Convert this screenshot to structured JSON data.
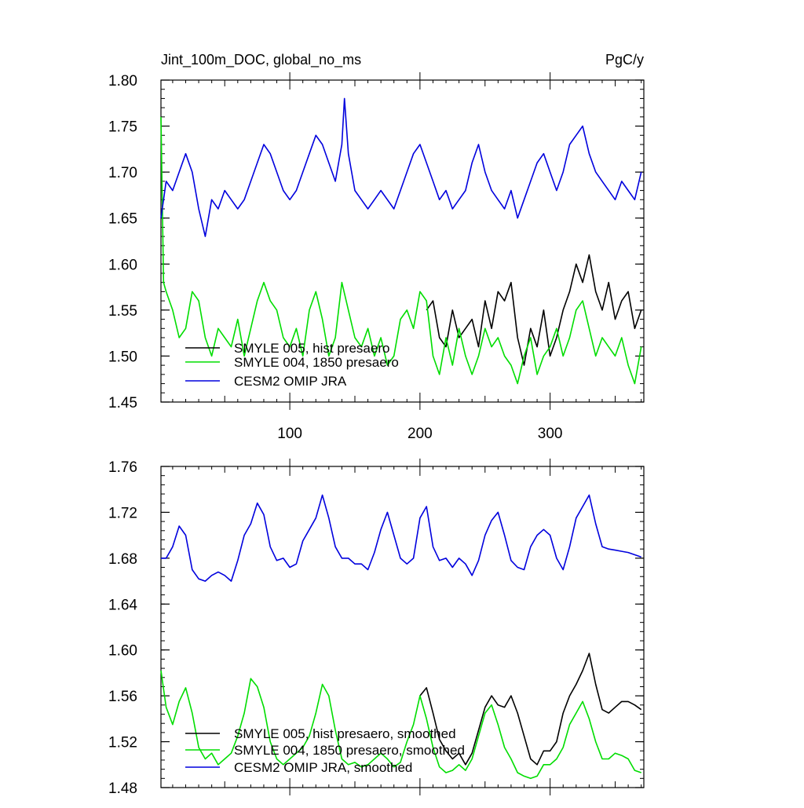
{
  "chart_data": [
    {
      "type": "line",
      "title": "Jint_100m_DOC, global_no_ms",
      "units": "PgC/y",
      "xlim": [
        1,
        372
      ],
      "ylim": [
        1.45,
        1.8
      ],
      "x_ticks": [
        100,
        200,
        300
      ],
      "y_ticks": [
        "1.45",
        "1.50",
        "1.55",
        "1.60",
        "1.65",
        "1.70",
        "1.75",
        "1.80"
      ],
      "grid": false,
      "legend_position": "bottom-left",
      "series": [
        {
          "name": "SMYLE 005, hist presaero",
          "color": "#000000",
          "x": [
            205,
            210,
            215,
            220,
            225,
            230,
            235,
            240,
            245,
            250,
            255,
            260,
            265,
            270,
            275,
            280,
            285,
            290,
            295,
            300,
            305,
            310,
            315,
            320,
            325,
            330,
            335,
            340,
            345,
            350,
            355,
            360,
            365,
            370
          ],
          "y": [
            1.55,
            1.56,
            1.52,
            1.51,
            1.55,
            1.52,
            1.53,
            1.54,
            1.51,
            1.56,
            1.53,
            1.57,
            1.56,
            1.58,
            1.52,
            1.49,
            1.53,
            1.51,
            1.55,
            1.5,
            1.52,
            1.55,
            1.57,
            1.6,
            1.58,
            1.61,
            1.57,
            1.55,
            1.58,
            1.54,
            1.56,
            1.57,
            1.53,
            1.55
          ]
        },
        {
          "name": "SMYLE 004, 1850 presaero",
          "color": "#00dd00",
          "x": [
            1,
            3,
            5,
            10,
            15,
            20,
            25,
            30,
            35,
            40,
            45,
            50,
            55,
            60,
            65,
            70,
            75,
            80,
            85,
            90,
            95,
            100,
            105,
            110,
            115,
            120,
            125,
            130,
            135,
            140,
            145,
            150,
            155,
            160,
            165,
            170,
            175,
            180,
            185,
            190,
            195,
            200,
            205,
            210,
            215,
            220,
            225,
            230,
            235,
            240,
            245,
            250,
            255,
            260,
            265,
            270,
            275,
            280,
            285,
            290,
            295,
            300,
            305,
            310,
            315,
            320,
            325,
            330,
            335,
            340,
            345,
            350,
            355,
            360,
            365,
            370
          ],
          "y": [
            1.76,
            1.58,
            1.57,
            1.55,
            1.52,
            1.53,
            1.57,
            1.56,
            1.52,
            1.5,
            1.53,
            1.52,
            1.51,
            1.54,
            1.5,
            1.53,
            1.56,
            1.58,
            1.56,
            1.55,
            1.52,
            1.51,
            1.53,
            1.5,
            1.55,
            1.57,
            1.54,
            1.5,
            1.52,
            1.58,
            1.55,
            1.52,
            1.51,
            1.53,
            1.5,
            1.52,
            1.49,
            1.5,
            1.54,
            1.55,
            1.53,
            1.57,
            1.56,
            1.5,
            1.48,
            1.52,
            1.49,
            1.53,
            1.5,
            1.48,
            1.5,
            1.53,
            1.51,
            1.52,
            1.5,
            1.49,
            1.47,
            1.5,
            1.52,
            1.48,
            1.5,
            1.51,
            1.53,
            1.5,
            1.52,
            1.55,
            1.56,
            1.53,
            1.5,
            1.52,
            1.51,
            1.5,
            1.52,
            1.49,
            1.47,
            1.51
          ]
        },
        {
          "name": "CESM2 OMIP JRA",
          "color": "#0000dd",
          "x": [
            1,
            5,
            10,
            15,
            20,
            25,
            30,
            35,
            40,
            45,
            50,
            55,
            60,
            65,
            70,
            75,
            80,
            85,
            90,
            95,
            100,
            105,
            110,
            115,
            120,
            125,
            130,
            135,
            140,
            142,
            145,
            150,
            155,
            160,
            165,
            170,
            175,
            180,
            185,
            190,
            195,
            200,
            205,
            210,
            215,
            220,
            225,
            230,
            235,
            240,
            245,
            250,
            255,
            260,
            265,
            270,
            275,
            280,
            285,
            290,
            295,
            300,
            305,
            310,
            315,
            320,
            325,
            330,
            335,
            340,
            345,
            350,
            355,
            360,
            365,
            370
          ],
          "y": [
            1.65,
            1.69,
            1.68,
            1.7,
            1.72,
            1.7,
            1.66,
            1.63,
            1.67,
            1.66,
            1.68,
            1.67,
            1.66,
            1.67,
            1.69,
            1.71,
            1.73,
            1.72,
            1.7,
            1.68,
            1.67,
            1.68,
            1.7,
            1.72,
            1.74,
            1.73,
            1.71,
            1.69,
            1.73,
            1.78,
            1.72,
            1.68,
            1.67,
            1.66,
            1.67,
            1.68,
            1.67,
            1.66,
            1.68,
            1.7,
            1.72,
            1.73,
            1.71,
            1.69,
            1.67,
            1.68,
            1.66,
            1.67,
            1.68,
            1.71,
            1.73,
            1.7,
            1.68,
            1.67,
            1.66,
            1.68,
            1.65,
            1.67,
            1.69,
            1.71,
            1.72,
            1.7,
            1.68,
            1.7,
            1.73,
            1.74,
            1.75,
            1.72,
            1.7,
            1.69,
            1.68,
            1.67,
            1.69,
            1.68,
            1.67,
            1.7
          ]
        }
      ]
    },
    {
      "type": "line",
      "xlim": [
        1,
        372
      ],
      "ylim": [
        1.48,
        1.76
      ],
      "x_ticks": [],
      "y_ticks": [
        "1.48",
        "1.52",
        "1.56",
        "1.60",
        "1.64",
        "1.68",
        "1.72",
        "1.76"
      ],
      "grid": false,
      "legend_position": "bottom-left",
      "series": [
        {
          "name": "SMYLE 005, hist presaero, smoothed",
          "color": "#000000",
          "x": [
            200,
            205,
            210,
            215,
            220,
            225,
            230,
            235,
            240,
            245,
            250,
            255,
            260,
            265,
            270,
            275,
            280,
            285,
            290,
            295,
            300,
            305,
            310,
            315,
            320,
            325,
            330,
            335,
            340,
            345,
            350,
            355,
            360,
            365,
            370
          ],
          "y": [
            1.56,
            1.567,
            1.545,
            1.522,
            1.512,
            1.505,
            1.51,
            1.5,
            1.51,
            1.53,
            1.55,
            1.56,
            1.552,
            1.55,
            1.56,
            1.545,
            1.525,
            1.505,
            1.5,
            1.512,
            1.512,
            1.52,
            1.545,
            1.56,
            1.57,
            1.582,
            1.597,
            1.57,
            1.548,
            1.545,
            1.55,
            1.555,
            1.555,
            1.552,
            1.548
          ]
        },
        {
          "name": "SMYLE 004, 1850 presaero, smoothed",
          "color": "#00dd00",
          "x": [
            1,
            5,
            10,
            15,
            20,
            25,
            30,
            35,
            40,
            45,
            50,
            55,
            60,
            65,
            70,
            75,
            80,
            85,
            90,
            95,
            100,
            105,
            110,
            115,
            120,
            125,
            130,
            135,
            140,
            145,
            150,
            155,
            160,
            165,
            170,
            175,
            180,
            185,
            190,
            195,
            200,
            205,
            210,
            215,
            220,
            225,
            230,
            235,
            240,
            245,
            250,
            255,
            260,
            265,
            270,
            275,
            280,
            285,
            290,
            295,
            300,
            305,
            310,
            315,
            320,
            325,
            330,
            335,
            340,
            345,
            350,
            355,
            360,
            365,
            370
          ],
          "y": [
            1.582,
            1.55,
            1.535,
            1.555,
            1.567,
            1.545,
            1.515,
            1.505,
            1.51,
            1.5,
            1.505,
            1.51,
            1.525,
            1.545,
            1.575,
            1.568,
            1.55,
            1.52,
            1.505,
            1.5,
            1.505,
            1.51,
            1.515,
            1.525,
            1.545,
            1.57,
            1.56,
            1.53,
            1.505,
            1.5,
            1.502,
            1.498,
            1.5,
            1.505,
            1.51,
            1.505,
            1.498,
            1.502,
            1.52,
            1.535,
            1.56,
            1.54,
            1.515,
            1.498,
            1.493,
            1.495,
            1.5,
            1.495,
            1.505,
            1.525,
            1.545,
            1.552,
            1.535,
            1.515,
            1.505,
            1.493,
            1.49,
            1.488,
            1.49,
            1.5,
            1.5,
            1.505,
            1.515,
            1.535,
            1.545,
            1.555,
            1.54,
            1.52,
            1.505,
            1.505,
            1.51,
            1.508,
            1.505,
            1.495,
            1.493
          ]
        },
        {
          "name": "CESM2 OMIP JRA, smoothed",
          "color": "#0000dd",
          "x": [
            1,
            5,
            10,
            15,
            20,
            25,
            30,
            35,
            40,
            45,
            50,
            55,
            60,
            65,
            70,
            75,
            80,
            85,
            90,
            95,
            100,
            105,
            110,
            115,
            120,
            125,
            130,
            135,
            140,
            145,
            150,
            155,
            160,
            165,
            170,
            175,
            180,
            185,
            190,
            195,
            200,
            205,
            210,
            215,
            220,
            225,
            230,
            235,
            240,
            245,
            250,
            255,
            260,
            265,
            270,
            275,
            280,
            285,
            290,
            295,
            300,
            305,
            310,
            315,
            320,
            325,
            330,
            335,
            340,
            345,
            350,
            355,
            360,
            365,
            370
          ],
          "y": [
            1.68,
            1.68,
            1.69,
            1.708,
            1.7,
            1.67,
            1.662,
            1.66,
            1.665,
            1.668,
            1.665,
            1.66,
            1.678,
            1.7,
            1.71,
            1.728,
            1.718,
            1.69,
            1.678,
            1.68,
            1.672,
            1.675,
            1.695,
            1.705,
            1.715,
            1.735,
            1.715,
            1.69,
            1.68,
            1.68,
            1.675,
            1.675,
            1.67,
            1.685,
            1.705,
            1.72,
            1.7,
            1.68,
            1.675,
            1.68,
            1.715,
            1.725,
            1.69,
            1.678,
            1.68,
            1.672,
            1.68,
            1.675,
            1.665,
            1.678,
            1.7,
            1.713,
            1.72,
            1.7,
            1.678,
            1.672,
            1.67,
            1.69,
            1.7,
            1.705,
            1.7,
            1.68,
            1.67,
            1.69,
            1.715,
            1.725,
            1.735,
            1.71,
            1.69,
            1.688,
            1.687,
            1.686,
            1.685,
            1.683,
            1.681
          ]
        }
      ]
    }
  ]
}
